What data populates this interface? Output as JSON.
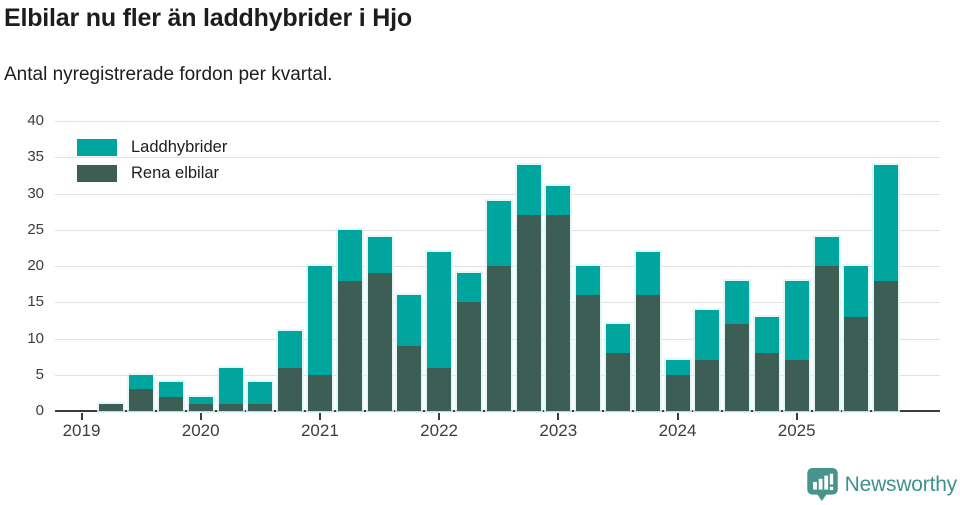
{
  "header": {
    "title": "Elbilar nu fler än laddhybrider i Hjo",
    "subtitle": "Antal nyregistrerade fordon per kvartal."
  },
  "legend": [
    {
      "label": "Laddhybrider",
      "color": "#00a59e"
    },
    {
      "label": "Rena elbilar",
      "color": "#3c5e55"
    }
  ],
  "branding": {
    "logo_text": "Newsworthy",
    "logo_color": "#3e918c",
    "logo_icon": "bar-chart-speech-bubble-icon",
    "logo_icon_color": "#48938c"
  },
  "chart_data": {
    "type": "bar",
    "stacked": true,
    "title": "Elbilar nu fler än laddhybrider i Hjo",
    "subtitle": "Antal nyregistrerade fordon per kvartal.",
    "xlabel": "",
    "ylabel": "",
    "ylim": [
      0,
      40
    ],
    "yticks": [
      0,
      5,
      10,
      15,
      20,
      25,
      30,
      35,
      40
    ],
    "grid": true,
    "legend_position": "top-left",
    "x": [
      "2019 Q1",
      "2019 Q2",
      "2019 Q3",
      "2019 Q4",
      "2020 Q1",
      "2020 Q2",
      "2020 Q3",
      "2020 Q4",
      "2021 Q1",
      "2021 Q2",
      "2021 Q3",
      "2021 Q4",
      "2022 Q1",
      "2022 Q2",
      "2022 Q3",
      "2022 Q4",
      "2023 Q1",
      "2023 Q2",
      "2023 Q3",
      "2023 Q4",
      "2024 Q1",
      "2024 Q2",
      "2024 Q3",
      "2024 Q4",
      "2025 Q1",
      "2025 Q2",
      "2025 Q3",
      "2025 Q4"
    ],
    "xtick_labels": [
      "2019",
      "2020",
      "2021",
      "2022",
      "2023",
      "2024",
      "2025"
    ],
    "series": [
      {
        "name": "Laddhybrider",
        "color": "#00a59e",
        "position": "top",
        "values": [
          0,
          0,
          2,
          2,
          1,
          5,
          3,
          5,
          15,
          7,
          5,
          7,
          16,
          4,
          9,
          7,
          4,
          4,
          4,
          6,
          2,
          7,
          6,
          5,
          11,
          4,
          7,
          16
        ]
      },
      {
        "name": "Rena elbilar",
        "color": "#3c5e55",
        "position": "bottom",
        "values": [
          0,
          1,
          3,
          2,
          1,
          1,
          1,
          6,
          5,
          18,
          19,
          9,
          6,
          15,
          20,
          27,
          27,
          16,
          8,
          16,
          5,
          7,
          12,
          8,
          7,
          20,
          13,
          18
        ]
      }
    ],
    "totals": [
      0,
      1,
      5,
      4,
      2,
      6,
      4,
      11,
      20,
      25,
      24,
      16,
      22,
      19,
      29,
      34,
      31,
      20,
      12,
      22,
      7,
      14,
      18,
      13,
      18,
      24,
      20,
      34
    ]
  }
}
